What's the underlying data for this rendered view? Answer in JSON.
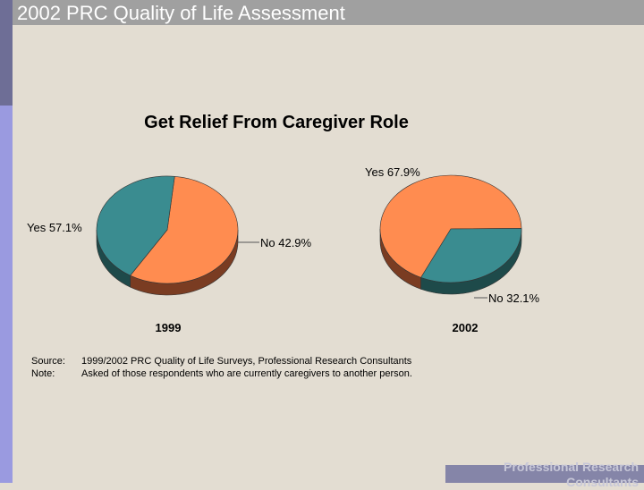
{
  "header": {
    "title": "2002 PRC Quality of Life Assessment"
  },
  "footer": {
    "branding": "Professional Research Consultants"
  },
  "notes": {
    "source_label": "Source:",
    "source_text": "1999/2002 PRC Quality of Life Surveys, Professional Research Consultants",
    "note_label": "Note:",
    "note_text": "Asked of those respondents who are currently caregivers to another person."
  },
  "colors": {
    "yes": "#ff8c50",
    "yes_side": "#7a3c22",
    "no": "#3a8c90",
    "no_side": "#1e4a4a",
    "header": "#a0a0a0",
    "sidebar": "#9a9ae0"
  },
  "chart_data": {
    "type": "pie",
    "title": "Get Relief From Caregiver Role",
    "charts": [
      {
        "year": "1999",
        "slices": [
          {
            "name": "Yes",
            "value": 57.1,
            "label": "Yes  57.1%"
          },
          {
            "name": "No",
            "value": 42.9,
            "label": "No  42.9%"
          }
        ]
      },
      {
        "year": "2002",
        "slices": [
          {
            "name": "Yes",
            "value": 67.9,
            "label": "Yes  67.9%"
          },
          {
            "name": "No",
            "value": 32.1,
            "label": "No  32.1%"
          }
        ]
      }
    ]
  }
}
